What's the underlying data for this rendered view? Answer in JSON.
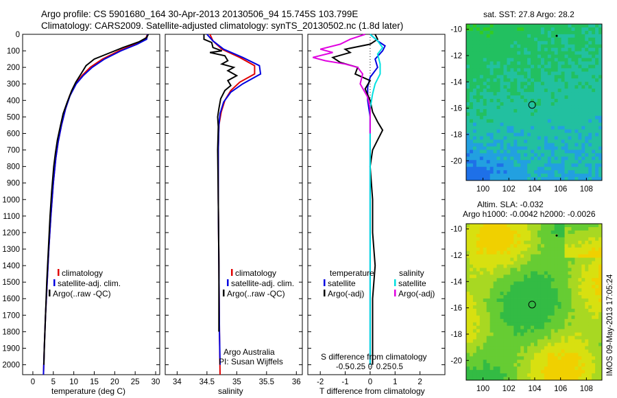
{
  "header": {
    "title_line1": "Argo profile: CS 5901680_164 30-Apr-2013 20130506_94 15.745S 103.799E",
    "title_line2": "Climatology: CARS2009. Satellite-adjusted climatology: synTS_20130502.nc (1.8d later)"
  },
  "chart_data": [
    {
      "type": "line",
      "xlabel": "temperature (deg C)",
      "ylabel": "",
      "xlim": [
        -2.5,
        31
      ],
      "ylim": [
        2060,
        0
      ],
      "xticks": [
        "0",
        "5",
        "10",
        "15",
        "20",
        "25",
        "30"
      ],
      "yticks": [
        "0",
        "100",
        "200",
        "300",
        "400",
        "500",
        "600",
        "700",
        "800",
        "900",
        "1000",
        "1100",
        "1200",
        "1300",
        "1400",
        "1500",
        "1600",
        "1700",
        "1800",
        "1900",
        "2000"
      ],
      "legend": [
        "climatology",
        "satellite-adj. clim.",
        "Argo(..raw -QC)"
      ],
      "series": [
        {
          "name": "climatology",
          "color": "#e00000",
          "points": [
            [
              28.0,
              0
            ],
            [
              27.5,
              30
            ],
            [
              25.0,
              60
            ],
            [
              21.0,
              100
            ],
            [
              17.0,
              150
            ],
            [
              14.0,
              200
            ],
            [
              12.0,
              250
            ],
            [
              10.5,
              300
            ],
            [
              9.0,
              370
            ],
            [
              8.0,
              450
            ],
            [
              7.0,
              550
            ],
            [
              6.2,
              650
            ],
            [
              5.6,
              750
            ],
            [
              5.0,
              900
            ],
            [
              4.4,
              1100
            ],
            [
              3.9,
              1300
            ],
            [
              3.5,
              1500
            ],
            [
              3.1,
              1700
            ],
            [
              2.8,
              1900
            ],
            [
              2.6,
              2060
            ]
          ]
        },
        {
          "name": "satellite-adj. clim.",
          "color": "#0000e0",
          "points": [
            [
              28.0,
              0
            ],
            [
              27.8,
              30
            ],
            [
              25.5,
              60
            ],
            [
              21.5,
              100
            ],
            [
              17.5,
              150
            ],
            [
              14.5,
              200
            ],
            [
              12.3,
              250
            ],
            [
              10.6,
              300
            ],
            [
              9.1,
              370
            ],
            [
              8.0,
              450
            ],
            [
              7.0,
              550
            ],
            [
              6.2,
              650
            ],
            [
              5.6,
              750
            ],
            [
              5.0,
              900
            ],
            [
              4.4,
              1100
            ],
            [
              3.9,
              1300
            ],
            [
              3.5,
              1500
            ],
            [
              3.1,
              1700
            ],
            [
              2.8,
              1900
            ],
            [
              2.6,
              2060
            ]
          ]
        },
        {
          "name": "Argo(..raw -QC)",
          "color": "#000000",
          "points": [
            [
              28.2,
              0
            ],
            [
              27.8,
              20
            ],
            [
              26.0,
              45
            ],
            [
              22.0,
              80
            ],
            [
              19.0,
              110
            ],
            [
              15.0,
              150
            ],
            [
              13.0,
              190
            ],
            [
              12.0,
              230
            ],
            [
              10.5,
              290
            ],
            [
              9.5,
              340
            ],
            [
              8.4,
              410
            ],
            [
              7.4,
              480
            ],
            [
              6.6,
              570
            ],
            [
              6.0,
              640
            ],
            [
              5.5,
              720
            ],
            [
              5.1,
              800
            ],
            [
              4.6,
              950
            ],
            [
              4.2,
              1100
            ],
            [
              3.8,
              1300
            ],
            [
              3.4,
              1500
            ],
            [
              3.1,
              1700
            ],
            [
              2.8,
              1900
            ],
            [
              2.7,
              2000
            ]
          ]
        }
      ]
    },
    {
      "type": "line",
      "xlabel": "salinity",
      "xlim": [
        33.8,
        36.1
      ],
      "ylim": [
        2060,
        0
      ],
      "xticks": [
        "34",
        "34.5",
        "35",
        "35.5",
        "36"
      ],
      "legend": [
        "climatology",
        "satellite-adj. clim.",
        "Argo(..raw -QC)"
      ],
      "annotation": [
        "Argo Australia",
        "PI: Susan Wijffels"
      ],
      "series": [
        {
          "name": "climatology",
          "color": "#e00000",
          "points": [
            [
              34.55,
              0
            ],
            [
              34.6,
              40
            ],
            [
              34.75,
              90
            ],
            [
              35.05,
              140
            ],
            [
              35.3,
              190
            ],
            [
              35.3,
              240
            ],
            [
              35.05,
              290
            ],
            [
              34.9,
              340
            ],
            [
              34.8,
              400
            ],
            [
              34.74,
              470
            ],
            [
              34.7,
              550
            ],
            [
              34.69,
              700
            ],
            [
              34.69,
              1000
            ],
            [
              34.7,
              1400
            ],
            [
              34.71,
              1800
            ],
            [
              34.72,
              2060
            ]
          ]
        },
        {
          "name": "satellite-adj. clim.",
          "color": "#0000e0",
          "points": [
            [
              34.5,
              0
            ],
            [
              34.6,
              40
            ],
            [
              34.78,
              90
            ],
            [
              35.1,
              140
            ],
            [
              35.38,
              190
            ],
            [
              35.4,
              240
            ],
            [
              35.1,
              300
            ],
            [
              34.9,
              350
            ],
            [
              34.78,
              410
            ],
            [
              34.72,
              480
            ],
            [
              34.7,
              550
            ],
            [
              34.69,
              700
            ],
            [
              34.69,
              1000
            ],
            [
              34.7,
              1400
            ],
            [
              34.71,
              1800
            ],
            [
              34.72,
              2000
            ]
          ]
        },
        {
          "name": "Argo(..raw -QC)",
          "color": "#000000",
          "points": [
            [
              34.45,
              0
            ],
            [
              34.45,
              30
            ],
            [
              34.58,
              50
            ],
            [
              34.6,
              80
            ],
            [
              34.75,
              100
            ],
            [
              34.55,
              110
            ],
            [
              34.8,
              130
            ],
            [
              34.85,
              160
            ],
            [
              34.75,
              180
            ],
            [
              34.95,
              200
            ],
            [
              34.85,
              220
            ],
            [
              35.0,
              250
            ],
            [
              34.85,
              280
            ],
            [
              34.9,
              310
            ],
            [
              34.8,
              340
            ],
            [
              34.73,
              390
            ],
            [
              34.7,
              450
            ],
            [
              34.68,
              500
            ],
            [
              34.69,
              560
            ],
            [
              34.68,
              700
            ],
            [
              34.69,
              1000
            ],
            [
              34.7,
              1400
            ],
            [
              34.7,
              1800
            ]
          ]
        }
      ]
    },
    {
      "type": "line",
      "xlabel": "T difference from climatology",
      "x2label": "S difference from climatology",
      "xlim": [
        -2.5,
        3.0
      ],
      "ylim": [
        2060,
        0
      ],
      "xticks": [
        "-2",
        "-1",
        "0",
        "1",
        "2"
      ],
      "x2ticks": [
        "-0.5",
        "-0.25",
        "0",
        "0.25",
        "0.5"
      ],
      "legend_headers": [
        "temperature",
        "salinity"
      ],
      "legend": [
        "satellite",
        "Argo(-adj)",
        "satellite",
        "Argo(-adj)"
      ],
      "series": [
        {
          "name": "temperature satellite",
          "color": "#0000e0",
          "points": [
            [
              0.0,
              0
            ],
            [
              0.3,
              40
            ],
            [
              0.6,
              70
            ],
            [
              0.5,
              100
            ],
            [
              0.2,
              150
            ],
            [
              0.3,
              200
            ],
            [
              0.0,
              260
            ],
            [
              -0.1,
              320
            ],
            [
              -0.1,
              400
            ],
            [
              0.0,
              500
            ],
            [
              0.0,
              700
            ],
            [
              0.0,
              1000
            ],
            [
              0.0,
              1500
            ],
            [
              0.0,
              2000
            ]
          ]
        },
        {
          "name": "temperature Argo(-adj)",
          "color": "#000000",
          "points": [
            [
              0.2,
              0
            ],
            [
              0.3,
              30
            ],
            [
              0.0,
              60
            ],
            [
              -1.0,
              90
            ],
            [
              -0.8,
              110
            ],
            [
              -1.5,
              140
            ],
            [
              -1.2,
              170
            ],
            [
              -0.5,
              200
            ],
            [
              -0.6,
              240
            ],
            [
              0.0,
              280
            ],
            [
              -0.2,
              330
            ],
            [
              0.0,
              400
            ],
            [
              0.1,
              470
            ],
            [
              0.3,
              530
            ],
            [
              0.5,
              580
            ],
            [
              0.3,
              640
            ],
            [
              0.1,
              700
            ],
            [
              0.0,
              800
            ],
            [
              0.1,
              1000
            ],
            [
              0.1,
              1200
            ],
            [
              0.2,
              1400
            ],
            [
              0.1,
              1600
            ],
            [
              0.1,
              1800
            ],
            [
              0.1,
              2000
            ]
          ]
        },
        {
          "name": "salinity satellite",
          "color": "#00e0e0",
          "points": [
            [
              0.0,
              0
            ],
            [
              0.3,
              40
            ],
            [
              0.5,
              80
            ],
            [
              0.3,
              120
            ],
            [
              0.4,
              180
            ],
            [
              0.4,
              240
            ],
            [
              0.2,
              300
            ],
            [
              0.1,
              360
            ],
            [
              0.0,
              450
            ],
            [
              0.0,
              600
            ],
            [
              0.0,
              1000
            ],
            [
              0.0,
              1500
            ],
            [
              0.0,
              2000
            ]
          ]
        },
        {
          "name": "salinity Argo(-adj)",
          "color": "#e000e0",
          "points": [
            [
              -0.2,
              0
            ],
            [
              -0.8,
              30
            ],
            [
              -1.2,
              60
            ],
            [
              -2.0,
              90
            ],
            [
              -1.5,
              110
            ],
            [
              -2.3,
              140
            ],
            [
              -1.8,
              160
            ],
            [
              -1.0,
              180
            ],
            [
              -0.5,
              200
            ],
            [
              -0.3,
              240
            ],
            [
              -0.4,
              300
            ],
            [
              -0.1,
              380
            ],
            [
              0.0,
              450
            ],
            [
              0.0,
              600
            ]
          ]
        }
      ]
    },
    {
      "type": "heatmap",
      "title": "sat. SST: 27.8  Argo: 28.2",
      "xticks": [
        "100",
        "102",
        "104",
        "106",
        "108"
      ],
      "yticks": [
        "-10",
        "-12",
        "-14",
        "-16",
        "-18",
        "-20"
      ],
      "xlim": [
        98.7,
        109.2
      ],
      "ylim": [
        -21.5,
        -9.6
      ],
      "marker": [
        103.8,
        -15.75
      ]
    },
    {
      "type": "heatmap",
      "title": "Altim. SLA: -0.032",
      "subtitle": "Argo h1000: -0.0042  h2000: -0.0026",
      "xticks": [
        "100",
        "102",
        "104",
        "106",
        "108"
      ],
      "yticks": [
        "-10",
        "-12",
        "-14",
        "-16",
        "-18",
        "-20"
      ],
      "xlim": [
        98.7,
        109.2
      ],
      "ylim": [
        -21.5,
        -9.6
      ],
      "marker": [
        103.8,
        -15.75
      ]
    }
  ],
  "footer": {
    "stamp": "IMOS 09-May-2013 17:05:24"
  },
  "colors": {
    "climatology": "#e00000",
    "satellite": "#0000e0",
    "argo": "#000000",
    "sal_sat": "#00e0e0",
    "sal_argo": "#e000e0"
  }
}
